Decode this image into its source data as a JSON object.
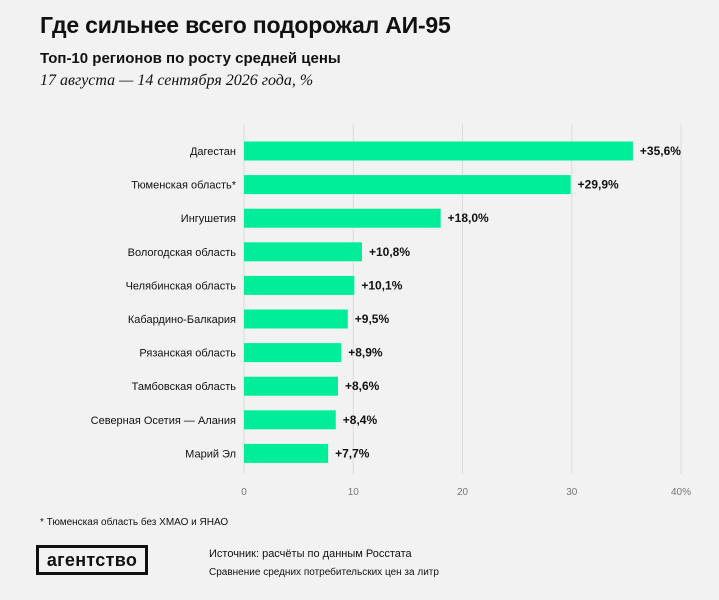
{
  "header": {
    "title": "Где сильнее всего подорожал АИ-95",
    "subtitle": "Топ-10 регионов по росту средней цены",
    "period": "17 августа — 14 сентября 2026 года, %"
  },
  "chart_data": {
    "type": "bar",
    "orientation": "horizontal",
    "categories": [
      "Дагестан",
      "Тюменская область*",
      "Ингушетия",
      "Вологодская область",
      "Челябинская область",
      "Кабардино-Балкария",
      "Рязанская область",
      "Тамбовская область",
      "Северная Осетия — Алания",
      "Марий Эл"
    ],
    "values": [
      35.6,
      29.9,
      18.0,
      10.8,
      10.1,
      9.5,
      8.9,
      8.6,
      8.4,
      7.7
    ],
    "value_labels": [
      "+35,6%",
      "+29,9%",
      "+18,0%",
      "+10,8%",
      "+10,1%",
      "+9,5%",
      "+8,9%",
      "+8,6%",
      "+8,4%",
      "+7,7%"
    ],
    "xlim": [
      0,
      40
    ],
    "ticks": [
      0,
      10,
      20,
      30,
      40
    ],
    "tick_labels": [
      "0",
      "10",
      "20",
      "30",
      "40%"
    ],
    "grid": true,
    "bar_color": "#00ee99",
    "grid_color": "#dcdcdc"
  },
  "footer": {
    "footnote": "* Тюменская область без ХМАО и ЯНАО",
    "logo": "агентство",
    "source": "Источник: расчёты по данным Росстата",
    "note": "Сравнение средних потребительских цен за литр"
  }
}
